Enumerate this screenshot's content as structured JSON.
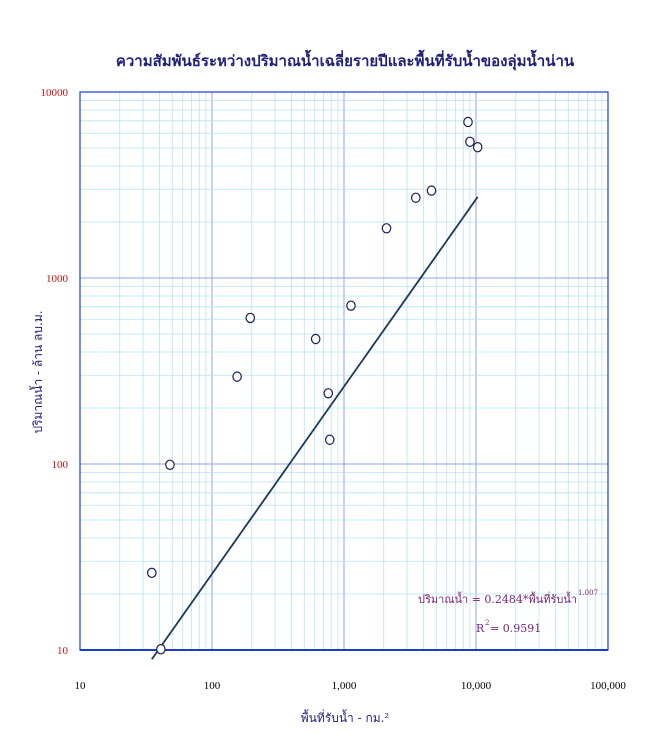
{
  "chart_data": {
    "type": "scatter",
    "title": "ความสัมพันธ์ระหว่างปริมาณน้ำเฉลี่ยรายปีและพื้นที่รับน้ำของลุ่มน้ำน่าน",
    "xlabel": "พื้นที่รับน้ำ - กม.²",
    "ylabel": "ปริมาณน้ำ - ล้าน ลบ.ม.",
    "x_scale": "log",
    "y_scale": "log",
    "xlim": [
      10,
      100000
    ],
    "ylim": [
      10,
      10000
    ],
    "x_ticks": [
      "10",
      "100",
      "1,000",
      "10,000",
      "100,000"
    ],
    "y_ticks": [
      "10000",
      "1000",
      "100",
      "10"
    ],
    "grid": true,
    "points": [
      {
        "x": 35,
        "y": 26
      },
      {
        "x": 41,
        "y": 10.1
      },
      {
        "x": 48,
        "y": 99
      },
      {
        "x": 155,
        "y": 295
      },
      {
        "x": 195,
        "y": 610
      },
      {
        "x": 610,
        "y": 470
      },
      {
        "x": 760,
        "y": 240
      },
      {
        "x": 780,
        "y": 135
      },
      {
        "x": 1130,
        "y": 710
      },
      {
        "x": 2100,
        "y": 1850
      },
      {
        "x": 3500,
        "y": 2700
      },
      {
        "x": 4600,
        "y": 2950
      },
      {
        "x": 8700,
        "y": 6900
      },
      {
        "x": 9000,
        "y": 5400
      },
      {
        "x": 10300,
        "y": 5050
      }
    ],
    "trendline": {
      "x_range": [
        35,
        10300
      ],
      "coef": 0.2484,
      "exponent": 1.007
    },
    "annotations": {
      "equation_text": "ปริมาณน้ำ = 0.2484*พื้นที่รับน้ำ",
      "equation_exponent": "1.007",
      "r2_prefix": "R",
      "r2_sup": "2",
      "r2_value": " = 0.9591"
    }
  }
}
